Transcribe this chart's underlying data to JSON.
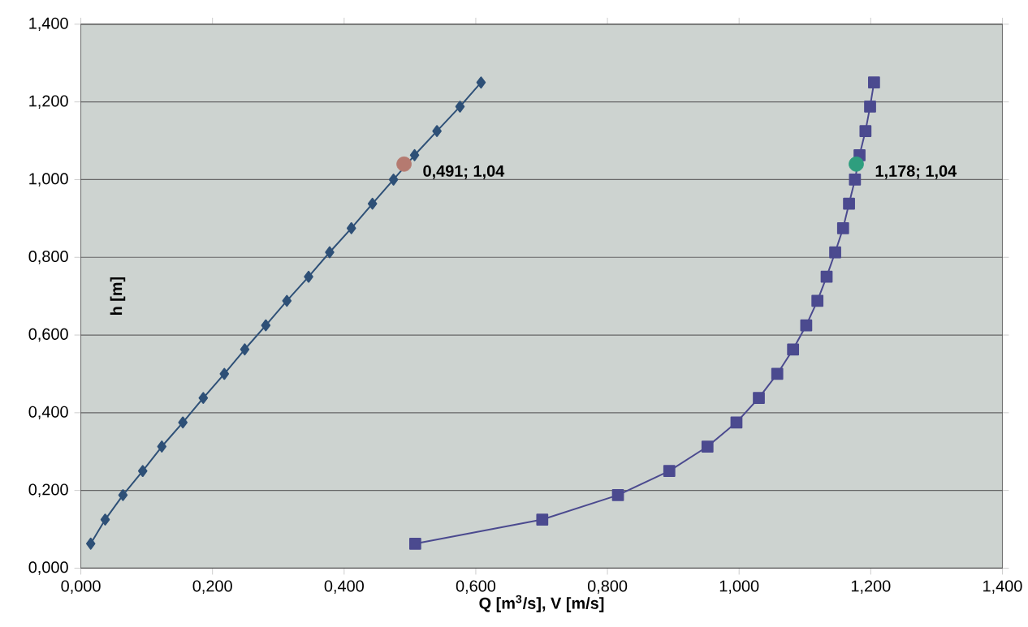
{
  "chart_data": {
    "type": "line",
    "xlabel": "Q [m$^{3}$/s], V [m/s]",
    "ylabel": "h [m]",
    "xlim": [
      0,
      1.4
    ],
    "ylim": [
      0,
      1.4
    ],
    "xticks": [
      {
        "value": 0,
        "label": "0,000"
      },
      {
        "value": 0.2,
        "label": "0,200"
      },
      {
        "value": 0.4,
        "label": "0,400"
      },
      {
        "value": 0.6,
        "label": "0,600"
      },
      {
        "value": 0.8,
        "label": "0,800"
      },
      {
        "value": 1.0,
        "label": "1,000"
      },
      {
        "value": 1.2,
        "label": "1,200"
      },
      {
        "value": 1.4,
        "label": "1,400"
      }
    ],
    "yticks": [
      {
        "value": 0,
        "label": "0,000"
      },
      {
        "value": 0.2,
        "label": "0,200"
      },
      {
        "value": 0.4,
        "label": "0,400"
      },
      {
        "value": 0.6,
        "label": "0,600"
      },
      {
        "value": 0.8,
        "label": "0,800"
      },
      {
        "value": 1.0,
        "label": "1,000"
      },
      {
        "value": 1.2,
        "label": "1,200"
      },
      {
        "value": 1.4,
        "label": "1,400"
      }
    ],
    "grid": "y",
    "line_style": "solid",
    "series": [
      {
        "marker": "diamond",
        "color": "#2e5077",
        "x": [
          0.015,
          0.037,
          0.064,
          0.094,
          0.123,
          0.155,
          0.186,
          0.218,
          0.249,
          0.281,
          0.313,
          0.346,
          0.378,
          0.411,
          0.443,
          0.475,
          0.507,
          0.541,
          0.576,
          0.608
        ],
        "values": [
          0.063,
          0.125,
          0.188,
          0.25,
          0.313,
          0.375,
          0.438,
          0.5,
          0.563,
          0.625,
          0.688,
          0.75,
          0.813,
          0.875,
          0.938,
          1.0,
          1.063,
          1.125,
          1.188,
          1.25
        ]
      },
      {
        "marker": "square",
        "color": "#4b4a8f",
        "x": [
          0.508,
          0.701,
          0.816,
          0.894,
          0.952,
          0.996,
          1.03,
          1.058,
          1.082,
          1.102,
          1.119,
          1.133,
          1.146,
          1.158,
          1.167,
          1.176,
          1.183,
          1.192,
          1.199,
          1.205
        ],
        "values": [
          0.063,
          0.125,
          0.188,
          0.25,
          0.313,
          0.375,
          0.438,
          0.5,
          0.563,
          0.625,
          0.688,
          0.75,
          0.813,
          0.875,
          0.938,
          1.0,
          1.063,
          1.125,
          1.188,
          1.25
        ]
      },
      {
        "type": "scatter",
        "marker": "circle",
        "color": "#b57a70",
        "x": [
          0.491
        ],
        "values": [
          1.04
        ]
      },
      {
        "type": "scatter",
        "marker": "circle",
        "color": "#2e9e7e",
        "x": [
          1.178
        ],
        "values": [
          1.04
        ]
      }
    ],
    "annotations": [
      {
        "text": "0,491; 1,04",
        "x": 0.491,
        "y": 1.04
      },
      {
        "text": "1,178; 1,04",
        "x": 1.178,
        "y": 1.04
      }
    ]
  }
}
